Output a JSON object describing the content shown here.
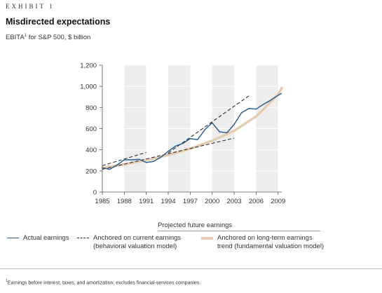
{
  "header": {
    "exhibit": "EXHIBIT 1",
    "title": "Misdirected expectations",
    "subtitle_main": "EBITA",
    "subtitle_sup": "1",
    "subtitle_rest": " for S&P 500, $ billion"
  },
  "chart_data": {
    "type": "line",
    "title": "Misdirected expectations",
    "ylim": [
      0,
      1200
    ],
    "xlim": [
      1985,
      2009.5
    ],
    "yticks": [
      0,
      200,
      400,
      600,
      800,
      1000,
      1200
    ],
    "ytick_labels": [
      "0",
      "200",
      "400",
      "600",
      "800",
      "1,000",
      "1,200"
    ],
    "xticks": [
      1985,
      1988,
      1991,
      1994,
      1997,
      2000,
      2003,
      2006,
      2009
    ],
    "band_years": [
      [
        1988,
        1991
      ],
      [
        1994,
        1997
      ],
      [
        2000,
        2003
      ],
      [
        2006,
        2009
      ]
    ],
    "series": [
      {
        "name": "Actual earnings",
        "color": "#2e5f8f",
        "style": "solid",
        "x": [
          1985,
          1986,
          1987,
          1988,
          1989,
          1990,
          1991,
          1992,
          1993,
          1994,
          1995,
          1996,
          1997,
          1998,
          1999,
          2000,
          2001,
          2002,
          2003,
          2004,
          2005,
          2006,
          2007,
          2008,
          2009,
          2009.5
        ],
        "y": [
          230,
          215,
          255,
          305,
          305,
          310,
          280,
          290,
          330,
          385,
          435,
          460,
          505,
          495,
          590,
          655,
          570,
          560,
          640,
          750,
          790,
          785,
          830,
          870,
          915,
          935
        ]
      },
      {
        "name": "Anchored on current earnings (behavioral valuation model)",
        "color": "#222222",
        "style": "dashed",
        "segments": [
          {
            "x": [
              1985,
              1991
            ],
            "y": [
              250,
              375
            ]
          },
          {
            "x": [
              1985,
              2003
            ],
            "y": [
              215,
              510
            ]
          },
          {
            "x": [
              1994,
              2005
            ],
            "y": [
              370,
              910
            ]
          }
        ]
      },
      {
        "name": "Anchored on long-term earnings trend (fundamental valuation model)",
        "color": "#e3ccb1",
        "style": "solid-thick",
        "x": [
          1985,
          1988,
          1991,
          1994,
          1997,
          2000,
          2003,
          2006,
          2009,
          2009.5
        ],
        "y": [
          228,
          262,
          302,
          350,
          410,
          485,
          580,
          715,
          925,
          985
        ]
      }
    ]
  },
  "legend": {
    "header": "Projected future earnings",
    "items": [
      {
        "line1": "Actual earnings",
        "line2": ""
      },
      {
        "line1": "Anchored on current earnings",
        "line2": "(behavioral valuation model)"
      },
      {
        "line1": "Anchored on long-term earnings",
        "line2": "trend (fundamental valuation model)"
      }
    ]
  },
  "footnote": {
    "sup": "1",
    "text": "Earnings before interest, taxes, and amortization; excludes financial-services companies."
  }
}
